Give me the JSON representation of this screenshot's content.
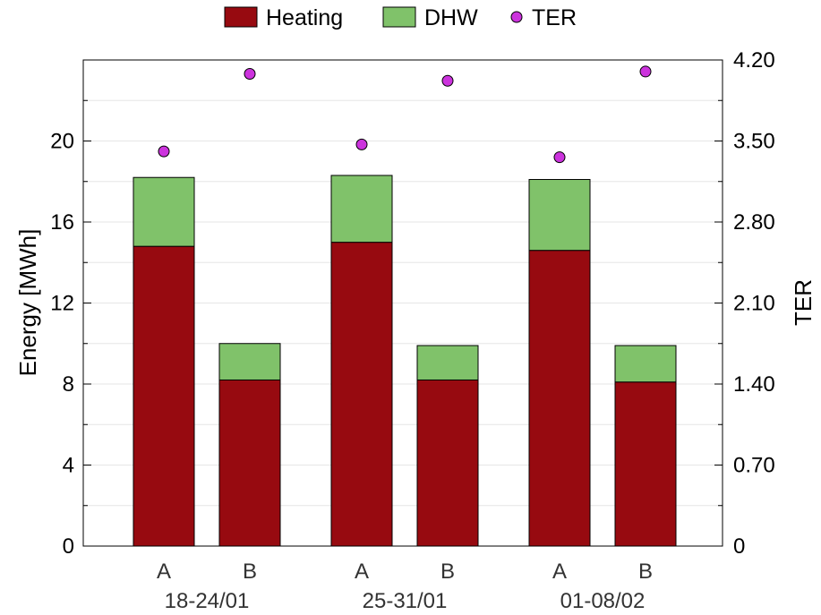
{
  "chart_data": {
    "type": "bar",
    "stacked": true,
    "title": "",
    "groups": [
      "18-24/01",
      "25-31/01",
      "01-08/02"
    ],
    "bars": [
      "A",
      "B"
    ],
    "categories": [
      "A",
      "B",
      "A",
      "B",
      "A",
      "B"
    ],
    "series": [
      {
        "name": "Heating",
        "color": "#970a10",
        "values": [
          14.8,
          8.2,
          15.0,
          8.2,
          14.6,
          8.1
        ]
      },
      {
        "name": "DHW",
        "color": "#80c26a",
        "values": [
          3.4,
          1.8,
          3.3,
          1.7,
          3.5,
          1.8
        ]
      }
    ],
    "ter": {
      "name": "TER",
      "color": "#cc33dd",
      "values": [
        3.41,
        4.08,
        3.47,
        4.02,
        3.36,
        4.1
      ]
    },
    "ylabel": "Energy [MWh]",
    "ylim": [
      0,
      24
    ],
    "yticks": [
      0,
      4,
      8,
      12,
      16,
      20
    ],
    "y2label": "TER",
    "y2lim": [
      0,
      4.2
    ],
    "y2ticks": [
      "0",
      "0.70",
      "1.40",
      "2.10",
      "2.80",
      "3.50",
      "4.20"
    ],
    "grid": true,
    "legend_position": "top"
  }
}
